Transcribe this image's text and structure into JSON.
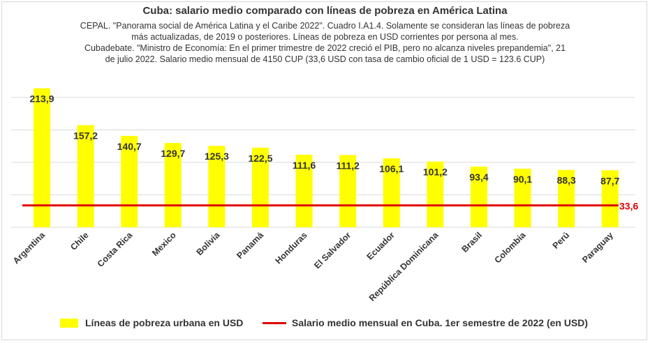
{
  "chart_data": {
    "type": "bar",
    "title": "Cuba: salario medio comparado con líneas de pobreza en América Latina",
    "subtitle_lines": [
      "CEPAL. \"Panorama social de América Latina y el Caribe 2022\". Cuadro I.A1.4. Solamente se consideran las líneas de pobreza",
      "más actualizadas, de 2019 o posteriores. Líneas de pobreza en USD corrientes por persona al mes.",
      "Cubadebate. \"Ministro de Economía: En el primer trimestre de 2022 creció el PIB, pero no alcanza niveles prepandemia\", 21",
      "de julio 2022. Salario medio mensual de 4150 CUP (33,6 USD con tasa de cambio oficial  de 1 USD = 123.6 CUP)"
    ],
    "categories": [
      "Argentina",
      "Chile",
      "Costa Rica",
      "Mexico",
      "Bolivia",
      "Panamá",
      "Honduras",
      "El Salvador",
      "Ecuador",
      "República Dominicana",
      "Brasil",
      "Colombia",
      "Perú",
      "Paraguay"
    ],
    "series": [
      {
        "name": "Líneas de pobreza urbana en USD",
        "type": "bar",
        "color": "#ffff00",
        "values": [
          213.9,
          157.2,
          140.7,
          129.7,
          125.3,
          122.5,
          111.6,
          111.2,
          106.1,
          101.2,
          93.4,
          90.1,
          88.3,
          87.7
        ],
        "labels": [
          "213,9",
          "157,2",
          "140,7",
          "129,7",
          "125,3",
          "122,5",
          "111,6",
          "111,2",
          "106,1",
          "101,2",
          "93,4",
          "90,1",
          "88,3",
          "87,7"
        ]
      },
      {
        "name": "Salario medio mensual en Cuba. 1er semestre de 2022 (en USD)",
        "type": "line",
        "color": "#e00000",
        "value": 33.6,
        "label": "33,6"
      }
    ],
    "ylim": [
      0,
      250
    ],
    "grid": true,
    "legend": "bottom"
  }
}
